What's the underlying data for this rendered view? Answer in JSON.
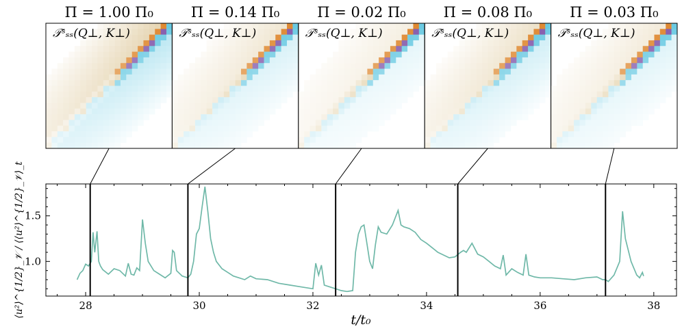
{
  "chart_data": [
    {
      "type": "heatmap",
      "panel_label": "𝒯ˢₛₛ(Q⊥, K⊥)",
      "panels": [
        {
          "title": "Π = 1.00 Π₀",
          "time": 28.08,
          "offdiag_strength": 1.0
        },
        {
          "title": "Π = 0.14 Π₀",
          "time": 29.8,
          "offdiag_strength": 0.6
        },
        {
          "title": "Π = 0.02 Π₀",
          "time": 32.4,
          "offdiag_strength": 0.4
        },
        {
          "title": "Π = 0.08 Π₀",
          "time": 34.55,
          "offdiag_strength": 0.7
        },
        {
          "title": "Π = 0.03 Π₀",
          "time": 37.15,
          "offdiag_strength": 0.5
        }
      ],
      "colors": {
        "positive_strong": "#7b4fa5",
        "positive": "#d9740d",
        "positive_weak": "#c9a55a",
        "negative": "#5fc6e0",
        "negative_strong": "#4c6fd6"
      }
    },
    {
      "type": "line",
      "xlabel": "t/t₀",
      "ylabel": "⟨u²⟩^{1/2}_𝒱 / ⟨⟨u²⟩^{1/2}_𝒱⟩_t",
      "xlim": [
        27.3,
        38.4
      ],
      "ylim": [
        0.62,
        1.85
      ],
      "xticks": [
        28,
        30,
        32,
        34,
        36,
        38
      ],
      "yticks": [
        1.0,
        1.5
      ],
      "xtick_labels": [
        "28",
        "30",
        "32",
        "34",
        "36",
        "38"
      ],
      "ytick_labels": [
        "1.0",
        "1.5"
      ],
      "series_color": "#6fb8a8",
      "markers": [
        28.08,
        29.8,
        32.4,
        34.55,
        37.15
      ],
      "x": [
        27.85,
        27.9,
        27.95,
        28.0,
        28.05,
        28.1,
        28.13,
        28.16,
        28.2,
        28.23,
        28.26,
        28.3,
        28.4,
        28.5,
        28.6,
        28.7,
        28.75,
        28.8,
        28.85,
        28.9,
        28.95,
        29.0,
        29.05,
        29.1,
        29.2,
        29.3,
        29.4,
        29.5,
        29.53,
        29.56,
        29.6,
        29.7,
        29.8,
        29.85,
        29.9,
        29.95,
        30.0,
        30.05,
        30.1,
        30.15,
        30.2,
        30.25,
        30.3,
        30.4,
        30.5,
        30.6,
        30.7,
        30.8,
        30.9,
        31.0,
        31.2,
        31.4,
        31.6,
        31.8,
        32.0,
        32.05,
        32.1,
        32.15,
        32.2,
        32.3,
        32.4,
        32.5,
        32.6,
        32.7,
        32.75,
        32.8,
        32.85,
        32.9,
        32.95,
        33.0,
        33.05,
        33.1,
        33.15,
        33.2,
        33.3,
        33.4,
        33.5,
        33.55,
        33.6,
        33.7,
        33.8,
        33.9,
        34.0,
        34.1,
        34.2,
        34.3,
        34.4,
        34.5,
        34.6,
        34.65,
        34.7,
        34.8,
        34.9,
        35.0,
        35.1,
        35.2,
        35.3,
        35.35,
        35.4,
        35.5,
        35.6,
        35.7,
        35.75,
        35.8,
        35.9,
        36.0,
        36.2,
        36.4,
        36.6,
        36.8,
        37.0,
        37.1,
        37.15,
        37.2,
        37.3,
        37.4,
        37.45,
        37.5,
        37.6,
        37.7,
        37.75,
        37.8,
        37.82
      ],
      "y": [
        0.8,
        0.87,
        0.9,
        0.97,
        0.95,
        1.0,
        1.32,
        1.1,
        1.33,
        1.0,
        0.95,
        0.91,
        0.86,
        0.92,
        0.9,
        0.84,
        0.98,
        0.86,
        0.85,
        0.93,
        0.9,
        1.46,
        1.2,
        1.0,
        0.9,
        0.86,
        0.82,
        0.87,
        1.12,
        1.1,
        0.9,
        0.84,
        0.82,
        0.86,
        1.0,
        1.3,
        1.36,
        1.6,
        1.82,
        1.55,
        1.25,
        1.1,
        1.0,
        0.92,
        0.88,
        0.84,
        0.82,
        0.8,
        0.84,
        0.81,
        0.8,
        0.76,
        0.74,
        0.72,
        0.7,
        0.98,
        0.85,
        0.96,
        0.74,
        0.72,
        0.7,
        0.68,
        0.67,
        0.68,
        1.1,
        1.3,
        1.38,
        1.4,
        1.2,
        1.0,
        0.92,
        1.18,
        1.38,
        1.32,
        1.3,
        1.4,
        1.56,
        1.4,
        1.38,
        1.36,
        1.32,
        1.24,
        1.2,
        1.15,
        1.1,
        1.07,
        1.04,
        1.05,
        1.1,
        1.12,
        1.1,
        1.2,
        1.08,
        1.05,
        1.0,
        0.95,
        0.92,
        1.07,
        0.85,
        0.92,
        0.88,
        0.85,
        1.08,
        0.85,
        0.83,
        0.82,
        0.82,
        0.81,
        0.8,
        0.82,
        0.83,
        0.8,
        0.8,
        0.78,
        0.85,
        1.0,
        1.55,
        1.25,
        1.0,
        0.85,
        0.82,
        0.88,
        0.84
      ]
    }
  ]
}
